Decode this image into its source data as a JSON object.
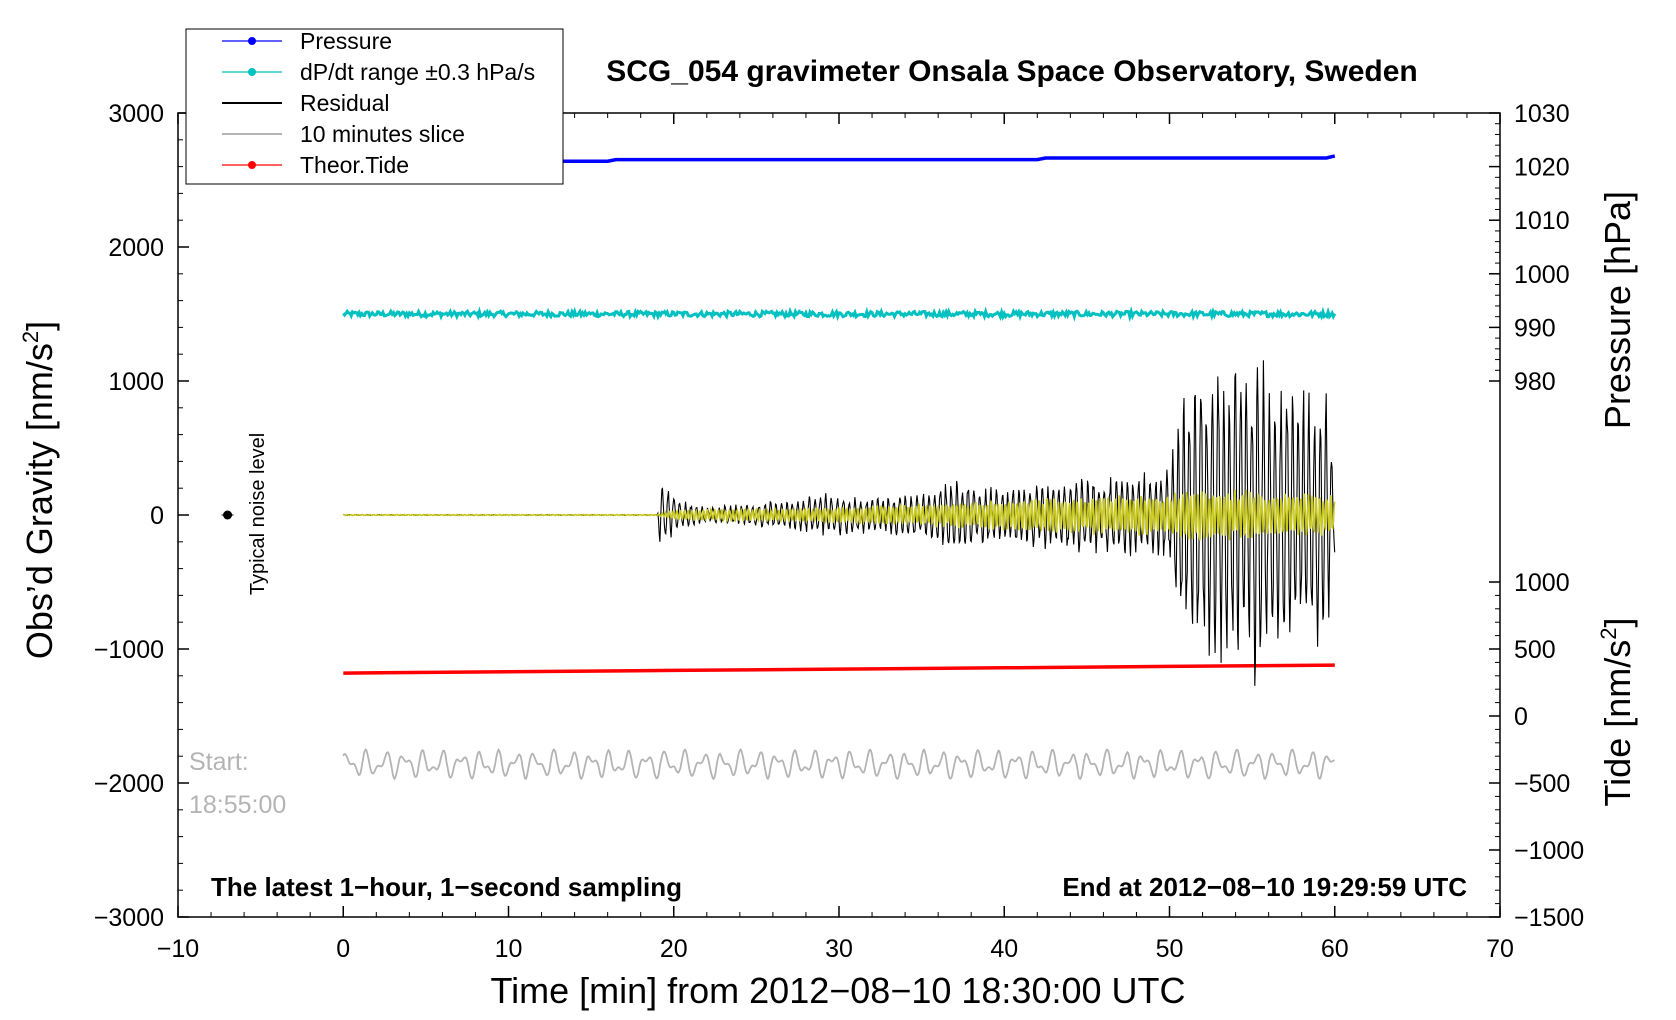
{
  "chart_data": {
    "type": "line",
    "title": "SCG_054 gravimeter Onsala Space Observatory, Sweden",
    "xlabel": "Time [min] from 2012−08−10 18:30:00 UTC",
    "ylabel_left": "Obs’d Gravity [nm/s",
    "ylabel_left_sup": "2",
    "ylabel_left_end": "]",
    "ylabel_right_top": "Pressure [hPa]",
    "ylabel_right_bottom": "Tide [nm/s",
    "ylabel_right_bottom_sup": "2",
    "ylabel_right_bottom_end": "]",
    "xlim": [
      -10,
      70
    ],
    "ylim": [
      -3000,
      3000
    ],
    "x_ticks": [
      -10,
      0,
      10,
      20,
      30,
      40,
      50,
      60,
      70
    ],
    "x_tick_labels": [
      "−10",
      "0",
      "10",
      "20",
      "30",
      "40",
      "50",
      "60",
      "70"
    ],
    "y_ticks": [
      -3000,
      -2000,
      -1000,
      0,
      1000,
      2000,
      3000
    ],
    "y_tick_labels": [
      "−3000",
      "−2000",
      "−1000",
      "0",
      "1000",
      "2000",
      "3000"
    ],
    "pressure_axis": {
      "ticks": [
        980,
        990,
        1000,
        1010,
        1020,
        1030
      ],
      "tick_labels": [
        "980",
        "990",
        "1000",
        "1010",
        "1020",
        "1030"
      ],
      "map": {
        "value_a": 1030,
        "gravity_a": 3000,
        "value_b": 980,
        "gravity_b": 1000
      }
    },
    "tide_axis": {
      "ticks": [
        -1500,
        -1000,
        -500,
        0,
        500,
        1000
      ],
      "tick_labels": [
        "−1500",
        "−1000",
        "−500",
        "0",
        "500",
        "1000"
      ],
      "map": {
        "value_a": 1000,
        "gravity_a": -500,
        "value_b": -1500,
        "gravity_b": -3000
      }
    },
    "legend": {
      "placement": "top-left",
      "entries": [
        {
          "label": "Pressure",
          "color": "#0000ff",
          "marker": true
        },
        {
          "label": "dP/dt range ±0.3 hPa/s",
          "color": "#00c0c0",
          "marker": true
        },
        {
          "label": "Residual",
          "color": "#000000",
          "marker": false
        },
        {
          "label": "10 minutes slice",
          "color": "#b4b4b4",
          "marker": false
        },
        {
          "label": "Theor.Tide",
          "color": "#ff0000",
          "marker": true
        }
      ]
    },
    "series": [
      {
        "name": "Pressure",
        "color": "#0000ff",
        "units": "hPa",
        "x": [
          0,
          16,
          16.5,
          42,
          42.5,
          59.5,
          60
        ],
        "values": [
          1021.0,
          1021.0,
          1021.3,
          1021.3,
          1021.6,
          1021.6,
          1022.0
        ]
      },
      {
        "name": "dP/dt range ±0.3 hPa/s",
        "color": "#00c0c0",
        "units": "gravity-axis offset",
        "x": [
          0,
          60
        ],
        "values": [
          1500,
          1500
        ]
      },
      {
        "name": "Theor.Tide",
        "color": "#ff0000",
        "units": "nm/s²",
        "x": [
          0,
          10,
          20,
          30,
          40,
          50,
          60
        ],
        "values": [
          320,
          330,
          340,
          350,
          360,
          370,
          380
        ]
      },
      {
        "name": "Residual",
        "color": "#000000",
        "units": "nm/s²",
        "envelope_x": [
          0,
          19,
          19.2,
          19.6,
          20.5,
          22,
          24,
          27,
          29,
          31,
          33,
          35,
          37,
          38,
          40,
          42,
          44,
          46,
          48,
          50,
          50.6,
          52,
          53.5,
          55,
          55.3,
          56,
          58,
          59.5,
          60
        ],
        "envelope_amp": [
          3,
          3,
          280,
          200,
          110,
          60,
          80,
          120,
          170,
          140,
          150,
          160,
          300,
          220,
          210,
          250,
          280,
          300,
          320,
          360,
          900,
          1100,
          1150,
          1200,
          1450,
          1000,
          1050,
          1000,
          300
        ]
      },
      {
        "name": "Filtered (yellow)",
        "color": "#c8c820",
        "units": "nm/s²",
        "envelope_x": [
          0,
          19,
          20,
          30,
          37,
          45,
          50,
          51,
          55,
          60
        ],
        "envelope_amp": [
          4,
          4,
          40,
          60,
          100,
          150,
          170,
          200,
          190,
          160
        ]
      },
      {
        "name": "10 minutes slice",
        "color": "#b4b4b4",
        "units": "nm/s²",
        "center": -1860,
        "amplitude": 110,
        "x": [
          0,
          60
        ]
      }
    ],
    "noise_marker": {
      "x": -7,
      "y": 0,
      "label": "Typical noise level"
    },
    "start_label": [
      "Start:",
      "18:55:00"
    ],
    "bottom_left_note": "The latest 1−hour, 1−second sampling",
    "bottom_right_note": "End at 2012−08−10 19:29:59 UTC"
  }
}
